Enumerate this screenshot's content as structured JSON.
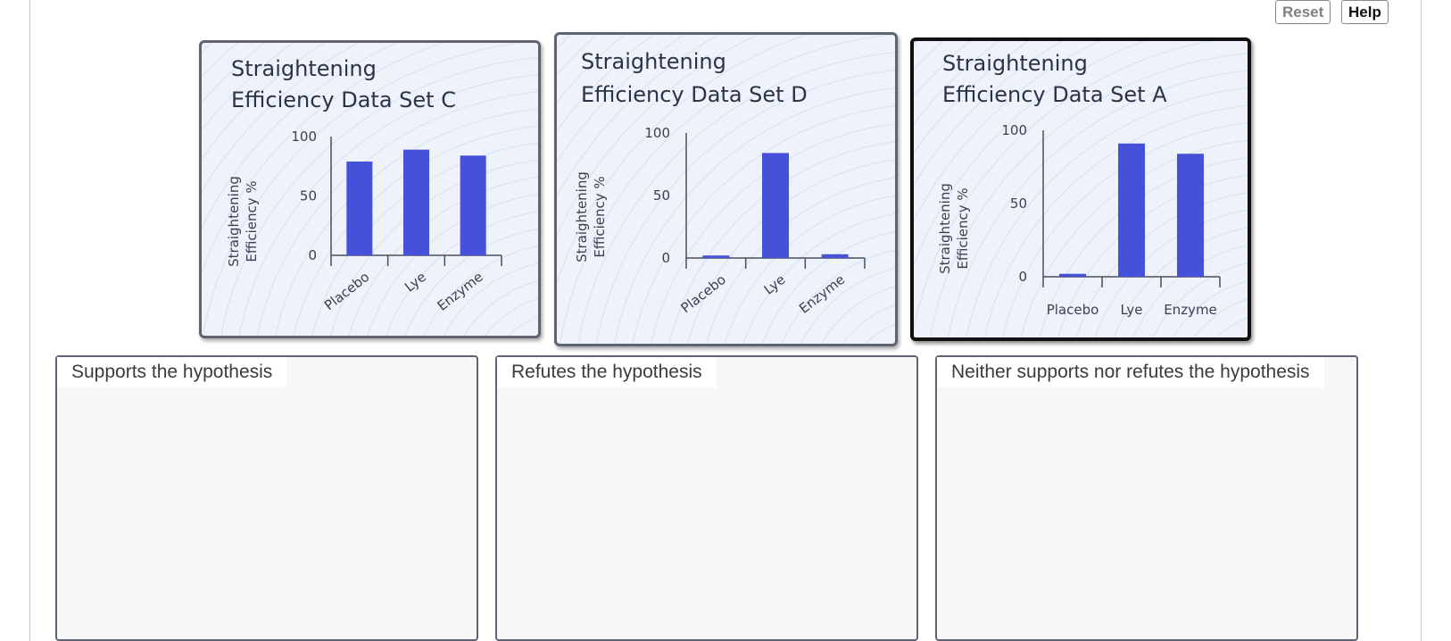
{
  "toolbar": {
    "reset_label": "Reset",
    "help_label": "Help"
  },
  "colors": {
    "bar": "#4451d8",
    "axis": "#4a4f60"
  },
  "cards": [
    {
      "id": "set-c",
      "title_line1": "Straightening",
      "title_line2": "Efficiency Data Set C",
      "ylabel_line1": "Straightening",
      "ylabel_line2": "Efficiency %",
      "selected": false
    },
    {
      "id": "set-d",
      "title_line1": "Straightening",
      "title_line2": "Efficiency Data Set D",
      "ylabel_line1": "Straightening",
      "ylabel_line2": "Efficiency %",
      "selected": false
    },
    {
      "id": "set-a",
      "title_line1": "Straightening",
      "title_line2": "Efficiency Data Set A",
      "ylabel_line1": "Straightening",
      "ylabel_line2": "Efficiency %",
      "selected": true
    }
  ],
  "chart_data": [
    {
      "type": "bar",
      "title": "Straightening Efficiency Data Set C",
      "categories": [
        "Placebo",
        "Lye",
        "Enzyme"
      ],
      "values": [
        79,
        89,
        84
      ],
      "yticks": [
        "0",
        "50",
        "100"
      ],
      "ylabel": "Straightening Efficiency %",
      "ylim": [
        0,
        100
      ]
    },
    {
      "type": "bar",
      "title": "Straightening Efficiency Data Set D",
      "categories": [
        "Placebo",
        "Lye",
        "Enzyme"
      ],
      "values": [
        2,
        84,
        3
      ],
      "yticks": [
        "0",
        "50",
        "100"
      ],
      "ylabel": "Straightening Efficiency %",
      "ylim": [
        0,
        100
      ]
    },
    {
      "type": "bar",
      "title": "Straightening Efficiency Data Set A",
      "categories": [
        "Placebo",
        "Lye",
        "Enzyme"
      ],
      "values": [
        2,
        91,
        84
      ],
      "yticks": [
        "0",
        "50",
        "100"
      ],
      "ylabel": "Straightening Efficiency %",
      "ylim": [
        0,
        100
      ]
    }
  ],
  "zones": [
    {
      "label": "Supports the hypothesis"
    },
    {
      "label": "Refutes the hypothesis"
    },
    {
      "label": "Neither supports nor refutes the hypothesis"
    }
  ]
}
